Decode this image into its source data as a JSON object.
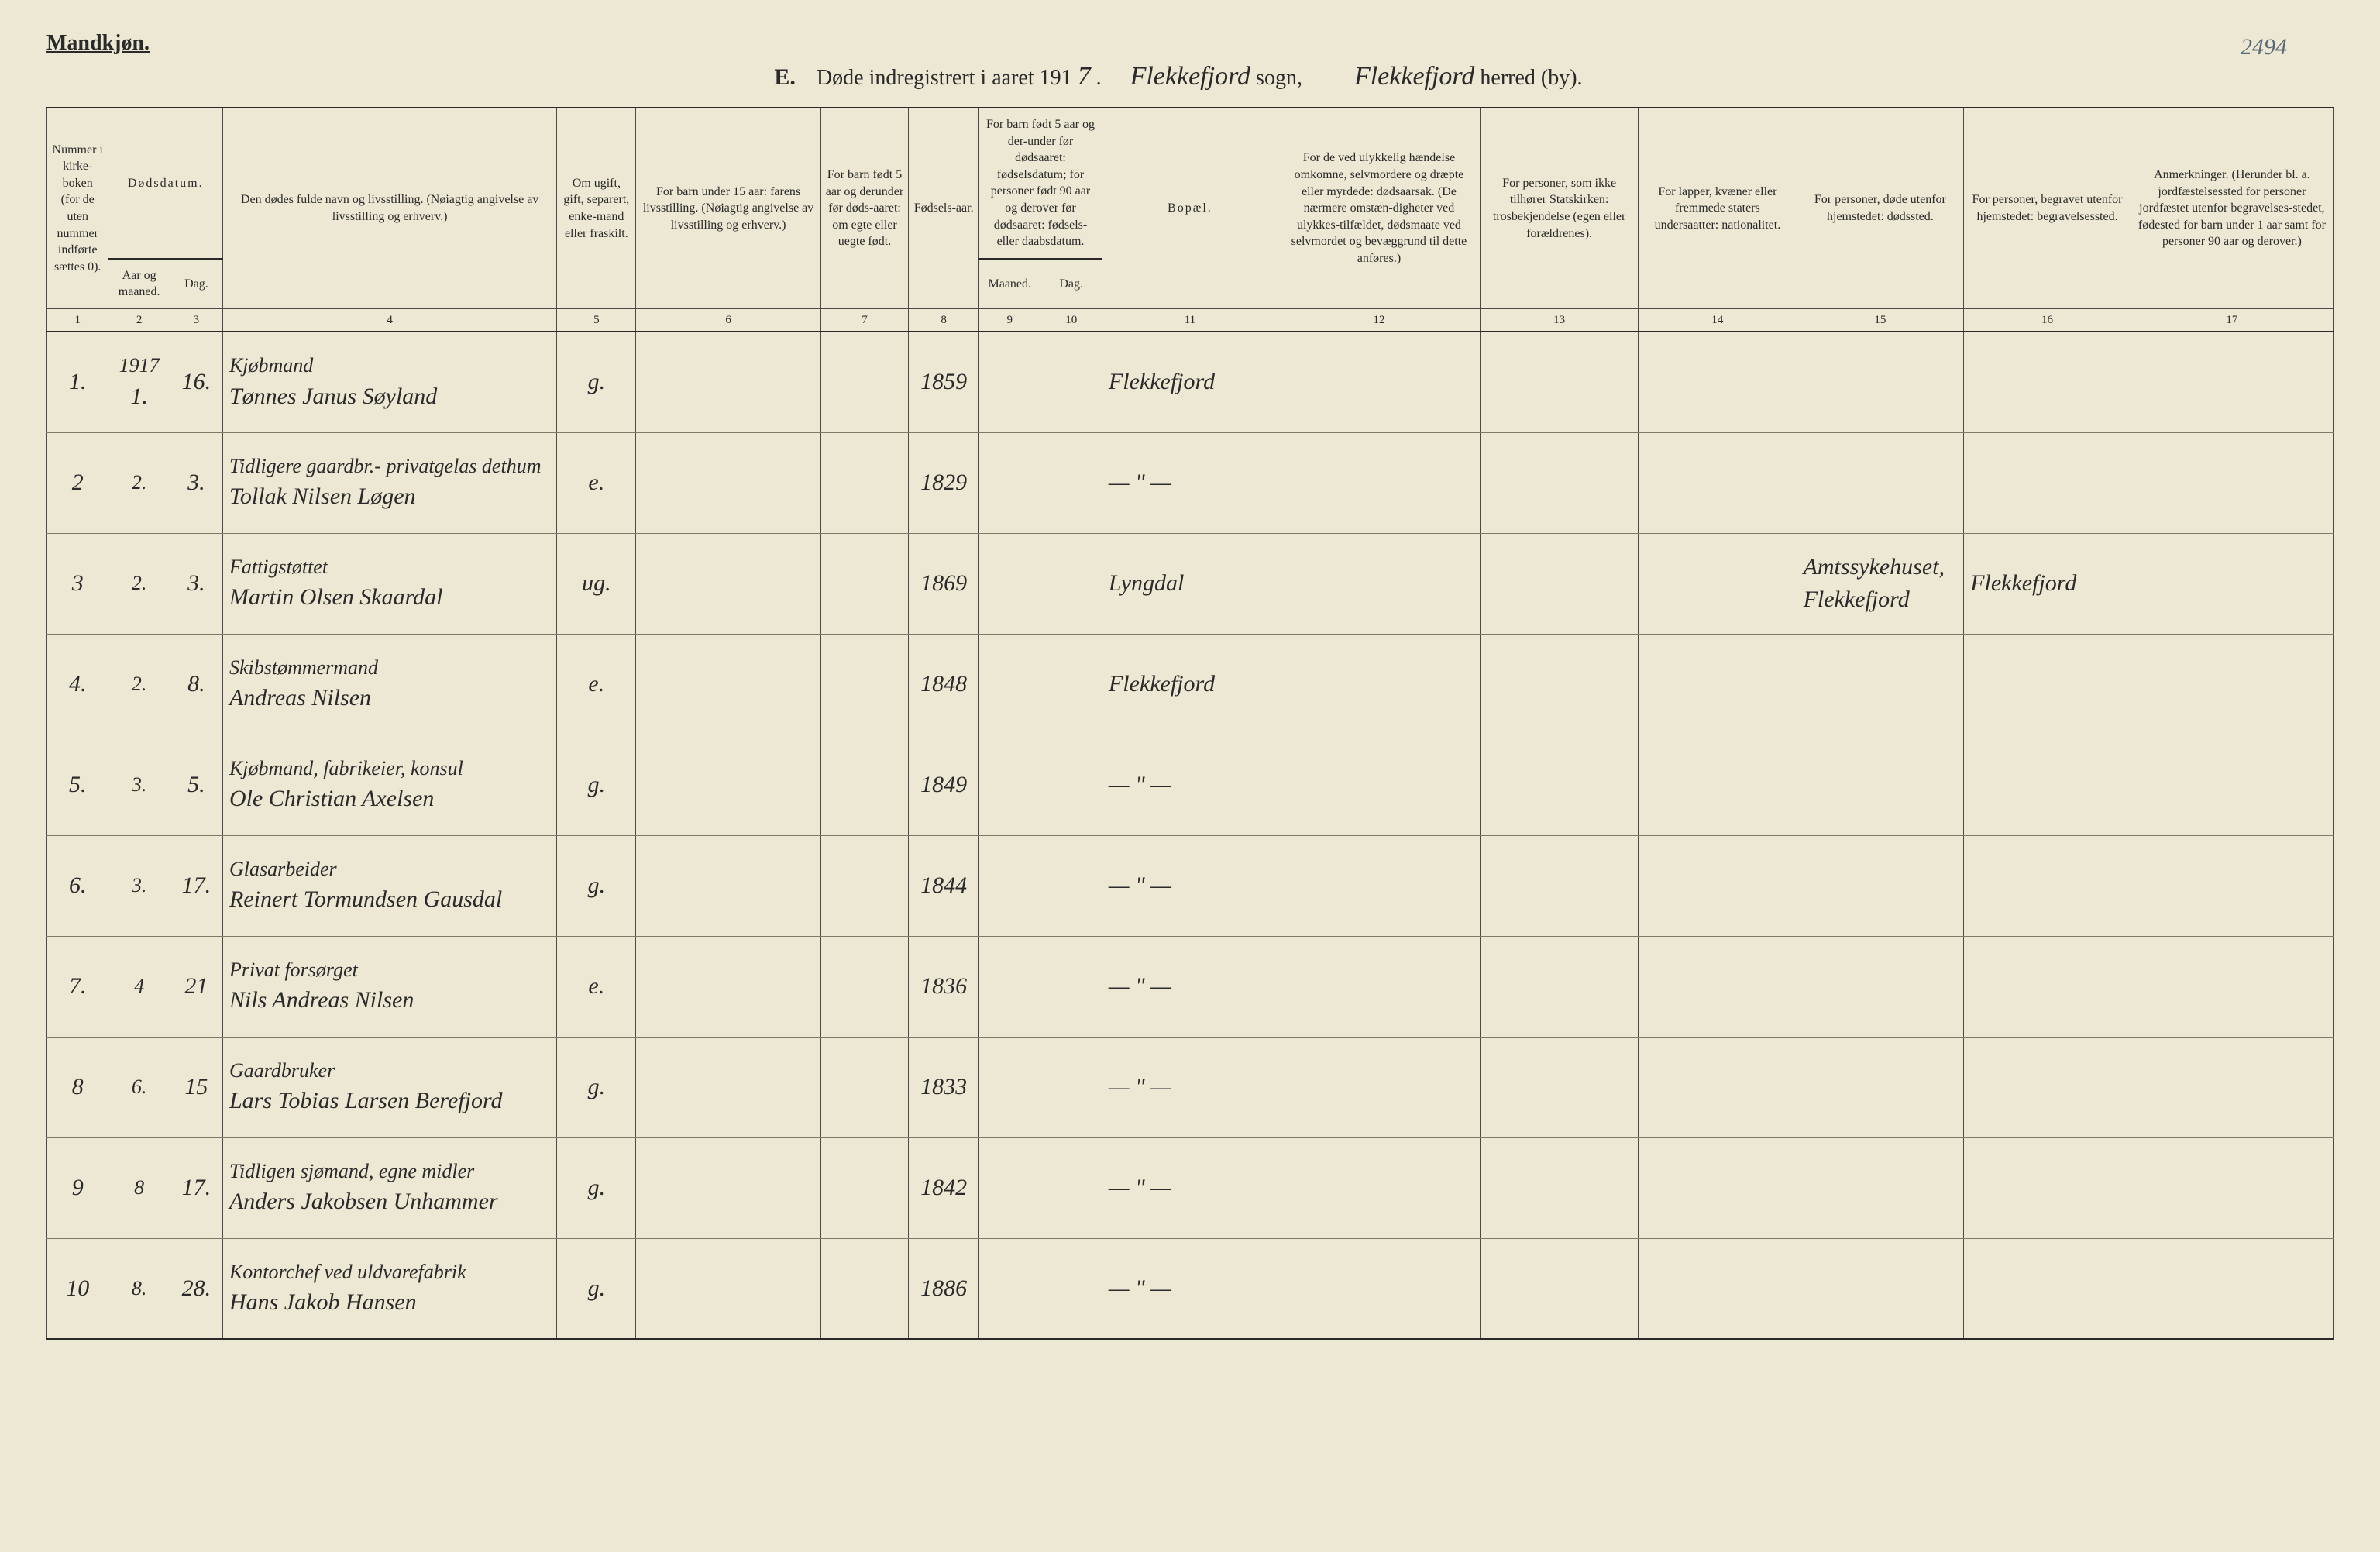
{
  "page_number": "2494",
  "header_left": "Mandkjøn.",
  "title": {
    "letter": "E.",
    "text_prefix": "Døde indregistrert i aaret 191",
    "year_suffix": "7",
    "sogn_script": "Flekkefjord",
    "sogn_label": "sogn,",
    "herred_script": "Flekkefjord",
    "herred_label": "herred (by)."
  },
  "columns": {
    "1": "Nummer i kirke-boken (for de uten nummer indførte sættes 0).",
    "2_top": "Dødsdatum.",
    "2": "Aar og maaned.",
    "3": "Dag.",
    "4": "Den dødes fulde navn og livsstilling. (Nøiagtig angivelse av livsstilling og erhverv.)",
    "5": "Om ugift, gift, separert, enke-mand eller fraskilt.",
    "6": "For barn under 15 aar: farens livsstilling. (Nøiagtig angivelse av livsstilling og erhverv.)",
    "7": "For barn født 5 aar og derunder før døds-aaret: om egte eller uegte født.",
    "8": "Fødsels-aar.",
    "9_10_top": "For barn født 5 aar og der-under før dødsaaret: fødselsdatum; for personer født 90 aar og derover før dødsaaret: fødsels- eller daabsdatum.",
    "9": "Maaned.",
    "10": "Dag.",
    "11": "Bopæl.",
    "12": "For de ved ulykkelig hændelse omkomne, selvmordere og dræpte eller myrdede: dødsaarsak. (De nærmere omstæn-digheter ved ulykkes-tilfældet, dødsmaate ved selvmordet og bevæggrund til dette anføres.)",
    "13": "For personer, som ikke tilhører Statskirken: trosbekjendelse (egen eller forældrenes).",
    "14": "For lapper, kvæner eller fremmede staters undersaatter: nationalitet.",
    "15": "For personer, døde utenfor hjemstedet: dødssted.",
    "16": "For personer, begravet utenfor hjemstedet: begravelsessted.",
    "17": "Anmerkninger. (Herunder bl. a. jordfæstelsessted for personer jordfæstet utenfor begravelses-stedet, fødested for barn under 1 aar samt for personer 90 aar og derover.)"
  },
  "colnums": [
    "1",
    "2",
    "3",
    "4",
    "5",
    "6",
    "7",
    "8",
    "9",
    "10",
    "11",
    "12",
    "13",
    "14",
    "15",
    "16",
    "17"
  ],
  "rows": [
    {
      "num": "1.",
      "year": "1917",
      "month": "1.",
      "day": "16.",
      "occ": "Kjøbmand",
      "name": "Tønnes Janus Søyland",
      "status": "g.",
      "birth": "1859",
      "bopael": "Flekkefjord"
    },
    {
      "num": "2",
      "year": "\"",
      "month": "2.",
      "day": "3.",
      "occ": "Tidligere gaardbr.- privatgelas dethum",
      "name": "Tollak Nilsen Løgen",
      "status": "e.",
      "birth": "1829",
      "bopael": "— \" —"
    },
    {
      "num": "3",
      "year": "\"",
      "month": "2.",
      "day": "3.",
      "occ": "Fattigstøttet",
      "name": "Martin Olsen Skaardal",
      "status": "ug.",
      "birth": "1869",
      "bopael": "Lyngdal",
      "c15": "Amtssykehuset, Flekkefjord",
      "c16": "Flekkefjord"
    },
    {
      "num": "4.",
      "year": "\"",
      "month": "2.",
      "day": "8.",
      "occ": "Skibstømmermand",
      "name": "Andreas Nilsen",
      "status": "e.",
      "birth": "1848",
      "bopael": "Flekkefjord"
    },
    {
      "num": "5.",
      "year": "\"",
      "month": "3.",
      "day": "5.",
      "occ": "Kjøbmand, fabrikeier, konsul",
      "name": "Ole Christian Axelsen",
      "status": "g.",
      "birth": "1849",
      "bopael": "— \" —"
    },
    {
      "num": "6.",
      "year": "\"",
      "month": "3.",
      "day": "17.",
      "occ": "Glasarbeider",
      "name": "Reinert Tormundsen Gausdal",
      "status": "g.",
      "birth": "1844",
      "bopael": "— \" —"
    },
    {
      "num": "7.",
      "year": "\"",
      "month": "4",
      "day": "21",
      "occ": "Privat forsørget",
      "name": "Nils Andreas Nilsen",
      "status": "e.",
      "birth": "1836",
      "bopael": "— \" —"
    },
    {
      "num": "8",
      "year": "\"",
      "month": "6.",
      "day": "15",
      "occ": "Gaardbruker",
      "name": "Lars Tobias Larsen Berefjord",
      "status": "g.",
      "birth": "1833",
      "bopael": "— \" —"
    },
    {
      "num": "9",
      "year": "\"",
      "month": "8",
      "day": "17.",
      "occ": "Tidligen sjømand, egne midler",
      "name": "Anders Jakobsen Unhammer",
      "status": "g.",
      "birth": "1842",
      "bopael": "— \" —"
    },
    {
      "num": "10",
      "year": "\"",
      "month": "8.",
      "day": "28.",
      "occ": "Kontorchef ved uldvarefabrik",
      "name": "Hans Jakob Hansen",
      "status": "g.",
      "birth": "1886",
      "bopael": "— \" —"
    }
  ],
  "colors": {
    "paper": "#ece8d4",
    "ink": "#2a2a2a",
    "rule": "#4a4a4a",
    "faint_rule": "#7a7a6a",
    "pencil": "#5a6a7a"
  },
  "typography": {
    "header_fontsize": 28,
    "body_fontsize": 19,
    "script_fontsize": 30,
    "colnum_fontsize": 15
  }
}
